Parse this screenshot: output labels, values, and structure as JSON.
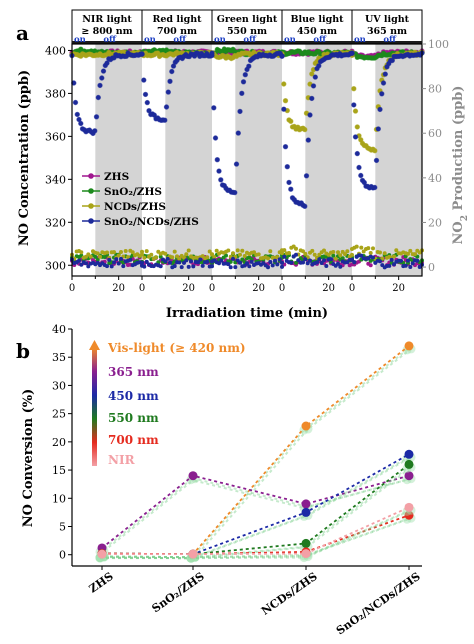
{
  "chart_data": [
    {
      "panel": "a",
      "type": "scatter",
      "xlabel": "Irradiation time (min)",
      "ylabel_left": "NO Concentration (ppb)",
      "ylabel_right_main": "NO",
      "ylabel_right_sub": "2",
      "ylabel_right_tail": " Production (ppb)",
      "ylim_left": [
        295,
        403
      ],
      "yticks_left": [
        300,
        320,
        340,
        360,
        380,
        400
      ],
      "ylim_right": [
        -4,
        100
      ],
      "yticks_right": [
        0,
        20,
        40,
        60,
        80,
        100
      ],
      "time_tick_labels": [
        "0",
        "20",
        "0",
        "20",
        "0",
        "20",
        "0",
        "20",
        "0",
        "20"
      ],
      "light_labels": [
        {
          "name": "NIR light",
          "wavelength": "≥ 800 nm"
        },
        {
          "name": "Red light",
          "wavelength": "700 nm"
        },
        {
          "name": "Green light",
          "wavelength": "550 nm"
        },
        {
          "name": "Blue light",
          "wavelength": "450 nm"
        },
        {
          "name": "UV light",
          "wavelength": "365 nm"
        }
      ],
      "on_label": "on",
      "off_label": "off",
      "segment_minutes": 30,
      "dark_start_minute": 10,
      "legend": [
        "ZHS",
        "SnO₂/ZHS",
        "NCDs/ZHS",
        "SnO₂/NCDs/ZHS"
      ],
      "legend_position": "left-middle",
      "colors": {
        "ZHS": "#a0178f",
        "SnO2_ZHS": "#1d8a1d",
        "NCDs_ZHS": "#a9a419",
        "SnO2_NCDs_ZHS": "#1d2a9a",
        "shade": "#d4d4d4",
        "right_axis": "#8c8c8c",
        "title_bar": "#1a1a1a"
      },
      "no_curve_plateaus": {
        "NIR": {
          "ZHS": 399,
          "SnO2_ZHS": 400,
          "NCDs_ZHS": 398,
          "SnO2_NCDs_ZHS": 362
        },
        "Red": {
          "ZHS": 399,
          "SnO2_ZHS": 400,
          "NCDs_ZHS": 398,
          "SnO2_NCDs_ZHS": 368
        },
        "Green": {
          "ZHS": 399,
          "SnO2_ZHS": 400,
          "NCDs_ZHS": 397,
          "SnO2_NCDs_ZHS": 334
        },
        "Blue": {
          "ZHS": 399,
          "SnO2_ZHS": 399,
          "NCDs_ZHS": 363,
          "SnO2_NCDs_ZHS": 328
        },
        "UV": {
          "ZHS": 397,
          "SnO2_ZHS": 397,
          "NCDs_ZHS": 354,
          "SnO2_NCDs_ZHS": 336
        }
      },
      "no2_baseline": {
        "ZHS": 302,
        "SnO2_ZHS": 303,
        "NCDs_ZHS": 305,
        "SnO2_NCDs_ZHS": 301
      }
    },
    {
      "panel": "b",
      "type": "line",
      "ylabel": "NO Conversion (%)",
      "ylim": [
        -2,
        40
      ],
      "yticks": [
        0,
        5,
        10,
        15,
        20,
        25,
        30,
        35,
        40
      ],
      "categories": [
        "ZHS",
        "SnO₂/ZHS",
        "NCDs/ZHS",
        "SnO₂/NCDs/ZHS"
      ],
      "legend_position": "top-left",
      "series": [
        {
          "name": "Vis-light (≥ 420 nm)",
          "color": "#ef8a2a",
          "values": [
            0.2,
            0.1,
            22.8,
            37.0
          ]
        },
        {
          "name": "365 nm",
          "color": "#8a1f8f",
          "values": [
            1.2,
            14.0,
            9.0,
            14.0
          ]
        },
        {
          "name": "450 nm",
          "color": "#1c2aa6",
          "values": [
            0.2,
            0.1,
            7.5,
            17.8
          ]
        },
        {
          "name": "550 nm",
          "color": "#1f7a1f",
          "values": [
            0.2,
            0.1,
            2.0,
            16.0
          ]
        },
        {
          "name": "700 nm",
          "color": "#e52b1f",
          "values": [
            0.2,
            0.1,
            0.5,
            7.0
          ]
        },
        {
          "name": "NIR",
          "color": "#f3a0a6",
          "values": [
            0.1,
            0.1,
            0.2,
            8.4
          ]
        }
      ]
    }
  ]
}
